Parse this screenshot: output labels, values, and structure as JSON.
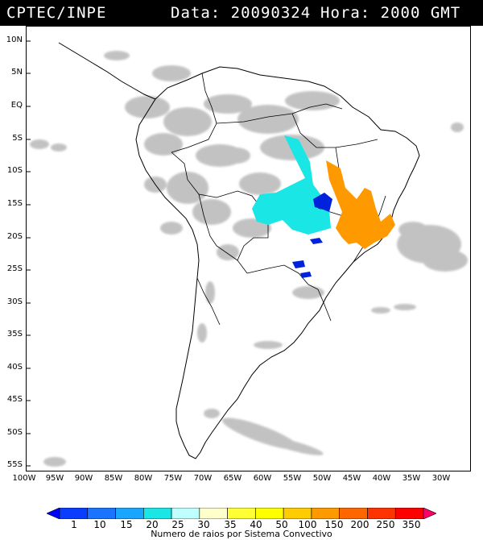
{
  "header": {
    "agency": "CPTEC/INPE",
    "date_text": "Data: 20090324",
    "time_text": "Hora: 2000 GMT"
  },
  "axes": {
    "lat_labels": [
      "10N",
      "5N",
      "EQ",
      "5S",
      "10S",
      "15S",
      "20S",
      "25S",
      "30S",
      "35S",
      "40S",
      "45S",
      "50S",
      "55S"
    ],
    "lon_labels": [
      "100W",
      "95W",
      "90W",
      "85W",
      "80W",
      "75W",
      "70W",
      "65W",
      "60W",
      "55W",
      "50W",
      "45W",
      "40W",
      "35W",
      "30W"
    ]
  },
  "map": {
    "background": "#ffffff",
    "cloud_color": "#b8b8b8",
    "border_color": "#000000",
    "convective_systems": [
      {
        "region": "central-brazil-west",
        "category": "25",
        "color": "#1ae6e6"
      },
      {
        "region": "central-brazil-east",
        "category": "100",
        "color": "#ff9900"
      },
      {
        "region": "goias",
        "category": "1",
        "color": "#0022dd"
      },
      {
        "region": "parana",
        "category": "10",
        "color": "#1a55ee"
      }
    ]
  },
  "colorbar": {
    "caption": "Numero de raios por Sistema Convectivo",
    "labels": [
      "1",
      "10",
      "15",
      "20",
      "25",
      "30",
      "35",
      "40",
      "50",
      "100",
      "150",
      "200",
      "250",
      "350"
    ],
    "colors": [
      "#0000ff",
      "#0b3dff",
      "#1a74ff",
      "#1aa6ff",
      "#1ae6e6",
      "#bfffff",
      "#ffffcc",
      "#ffff33",
      "#ffff00",
      "#ffcc00",
      "#ff9900",
      "#ff6600",
      "#ff3300",
      "#ff0000",
      "#ff0066"
    ]
  }
}
